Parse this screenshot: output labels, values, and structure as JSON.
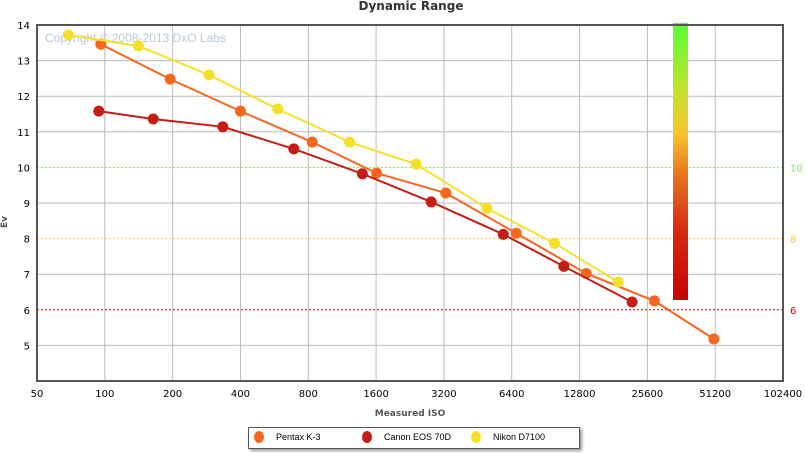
{
  "chart_data": {
    "type": "line",
    "title": "Dynamic Range",
    "xlabel": "Measured ISO",
    "ylabel": "Ev",
    "xscale": "log2",
    "xlim": [
      50,
      102400
    ],
    "ylim": [
      4,
      14
    ],
    "x_ticks": [
      "50",
      "100",
      "200",
      "400",
      "800",
      "1600",
      "3200",
      "6400",
      "12800",
      "25600",
      "51200",
      "102400"
    ],
    "y_ticks": [
      "5",
      "6",
      "7",
      "8",
      "9",
      "10",
      "11",
      "12",
      "13",
      "14"
    ],
    "right_axis_ticks": [
      {
        "label": "10",
        "value": 10,
        "color": "#66ff33"
      },
      {
        "label": "8",
        "value": 8,
        "color": "#ffcc33"
      },
      {
        "label": "6",
        "value": 6,
        "color": "#cc0000"
      }
    ],
    "watermark": "Copyright © 2008-2013 DxO Labs",
    "grid": true,
    "legend_position": "bottom-center",
    "colorbar": {
      "min": 6.3,
      "max": 14,
      "colors": [
        "#cc0000",
        "#e8641a",
        "#f8c02a",
        "#66ff33"
      ]
    },
    "series": [
      {
        "name": "Pentax K-3",
        "color": "#f7661e",
        "x": [
          96,
          195,
          400,
          833,
          1608,
          3260,
          6700,
          13700,
          27500,
          50500
        ],
        "y": [
          13.46,
          12.48,
          11.58,
          10.71,
          9.84,
          9.28,
          8.15,
          7.02,
          6.25,
          5.18
        ]
      },
      {
        "name": "Canon EOS 70D",
        "color": "#c41e16",
        "x": [
          94,
          164,
          334,
          690,
          1390,
          2810,
          5870,
          10900,
          21900
        ],
        "y": [
          11.58,
          11.36,
          11.14,
          10.52,
          9.82,
          9.03,
          8.12,
          7.22,
          6.22
        ]
      },
      {
        "name": "Nikon D7100",
        "color": "#f5e12a",
        "x": [
          69,
          141,
          290,
          585,
          1220,
          2410,
          4970,
          9900,
          19000
        ],
        "y": [
          13.72,
          13.41,
          12.6,
          11.64,
          10.71,
          10.09,
          8.85,
          7.87,
          6.78
        ]
      }
    ]
  }
}
